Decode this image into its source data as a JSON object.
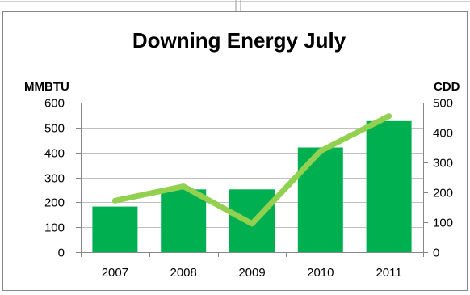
{
  "chart_data": {
    "type": "bar",
    "title": "Downing Energy July",
    "ylabel": "MMBTU",
    "y2label": "CDD",
    "categories": [
      "2007",
      "2008",
      "2009",
      "2010",
      "2011"
    ],
    "series": [
      {
        "type": "bar",
        "axis": "left",
        "values": [
          183,
          252,
          252,
          420,
          526
        ]
      },
      {
        "type": "line",
        "axis": "right",
        "values": [
          172,
          220,
          95,
          338,
          455
        ]
      }
    ],
    "ylim": [
      0,
      600
    ],
    "y2lim": [
      0,
      500
    ],
    "yticks": [
      "0",
      "100",
      "200",
      "300",
      "400",
      "500",
      "600"
    ],
    "y2ticks": [
      "0",
      "100",
      "200",
      "300",
      "400",
      "500"
    ],
    "grid": true,
    "legend": "none",
    "colors": {
      "bar": "#00b050",
      "line": "#92d050",
      "grid": "#bfbfbf",
      "axis": "#868686",
      "frame": "#868686"
    }
  }
}
